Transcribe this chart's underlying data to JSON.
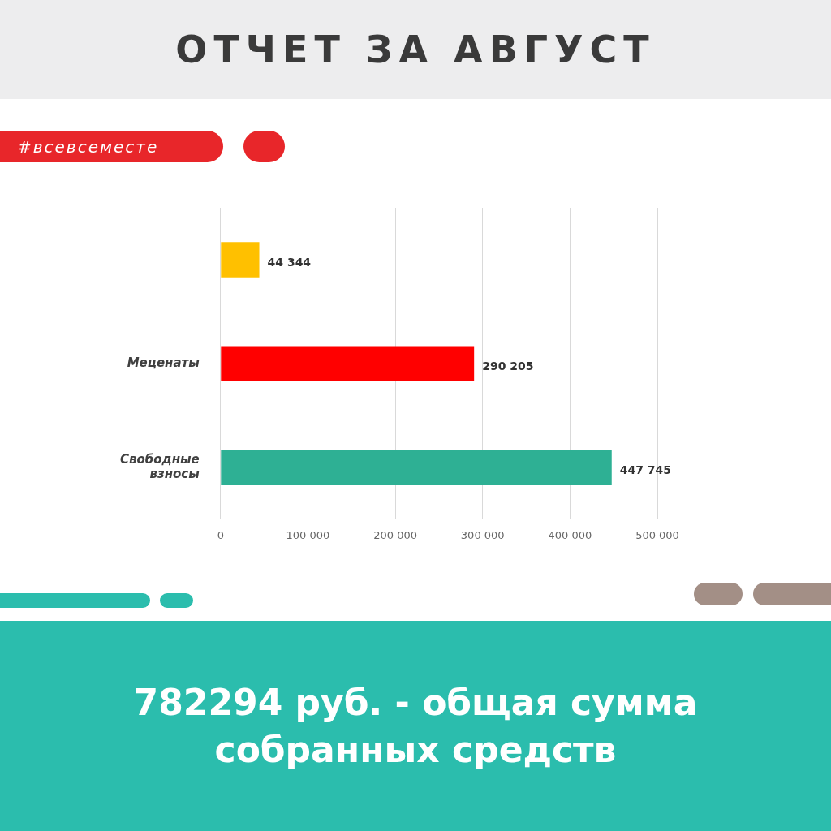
{
  "chart_data": {
    "type": "bar",
    "orientation": "horizontal",
    "title": "ОТЧЕТ ЗА АВГУСТ",
    "categories": [
      null,
      "Меценаты",
      "Свободные взносы"
    ],
    "values": [
      44344,
      290205,
      447745
    ],
    "colors": [
      "#ffc000",
      "#ff0000",
      "#2eb094"
    ],
    "value_labels": [
      "44 344",
      "290 205",
      "447 745"
    ],
    "xlim": [
      0,
      500000
    ],
    "xticks": [
      0,
      {
        "value": 100000,
        "label": "100 000"
      },
      {
        "value": 200000,
        "label": "200 000"
      },
      {
        "value": 300000,
        "label": "300 000"
      },
      {
        "value": 400000,
        "label": "400 000"
      },
      {
        "value": 500000,
        "label": "500 000"
      }
    ],
    "grid": "x",
    "legend": false,
    "annotations": [
      "#всевсеместе",
      "782294 руб. - общая сумма собранных средств"
    ]
  }
}
